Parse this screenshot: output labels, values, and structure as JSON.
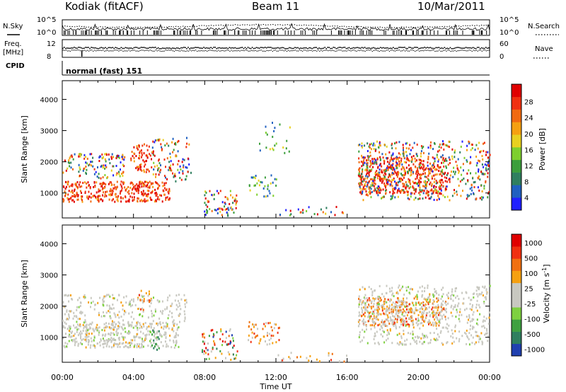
{
  "header": {
    "station": "Kodiak (fitACF)",
    "beam": "Beam 11",
    "date": "10/Mar/2011"
  },
  "noise_panel": {
    "left_label": "N.Sky",
    "right_label": "N.Search",
    "tick_top": "10^5",
    "tick_bottom": "10^0"
  },
  "freq_panel": {
    "left_label_1": "Freq.",
    "left_label_2": "[MHz]",
    "right_label": "Nave",
    "left_ticks": [
      "12",
      "8"
    ],
    "right_ticks": [
      "60",
      "0"
    ]
  },
  "cpid": {
    "label": "CPID",
    "program": "normal (fast) 151"
  },
  "chart_data": [
    {
      "type": "heatmap",
      "name": "power",
      "ylabel": "Slant Range [km]",
      "xlabel": "Time UT",
      "x_ticks": [
        "00:00",
        "04:00",
        "08:00",
        "12:00",
        "16:00",
        "20:00",
        "00:00"
      ],
      "y_ticks": [
        1000,
        2000,
        3000,
        4000
      ],
      "xlim": [
        0,
        24
      ],
      "ylim": [
        200,
        4600
      ],
      "colorbar": {
        "label": "Power [dB]",
        "ticks": [
          4,
          8,
          12,
          16,
          20,
          24,
          28
        ],
        "colors": [
          "#2020ff",
          "#2060c0",
          "#2f7f5f",
          "#3c9e3c",
          "#7ecf2e",
          "#e8d020",
          "#f5a010",
          "#f06a10",
          "#f03010",
          "#e00000"
        ]
      }
    },
    {
      "type": "heatmap",
      "name": "velocity",
      "ylabel": "Slant Range [km]",
      "xlabel": "Time UT",
      "x_ticks": [
        "00:00",
        "04:00",
        "08:00",
        "12:00",
        "16:00",
        "20:00",
        "00:00"
      ],
      "y_ticks": [
        1000,
        2000,
        3000,
        4000
      ],
      "xlim": [
        0,
        24
      ],
      "ylim": [
        200,
        4600
      ],
      "colorbar": {
        "label": "Velocity [m s-1]",
        "ticks": [
          1000,
          500,
          100,
          25,
          -25,
          -100,
          -500,
          -1000
        ],
        "colors": [
          "#2040b0",
          "#2f7f5f",
          "#3ea040",
          "#7ed040",
          "#c8c8c0",
          "#c8c8c0",
          "#f5a010",
          "#f07010",
          "#f03010",
          "#e00000"
        ]
      }
    }
  ],
  "x_axis": {
    "label": "Time UT",
    "ticks": [
      "00:00",
      "04:00",
      "08:00",
      "12:00",
      "16:00",
      "20:00",
      "00:00"
    ]
  }
}
